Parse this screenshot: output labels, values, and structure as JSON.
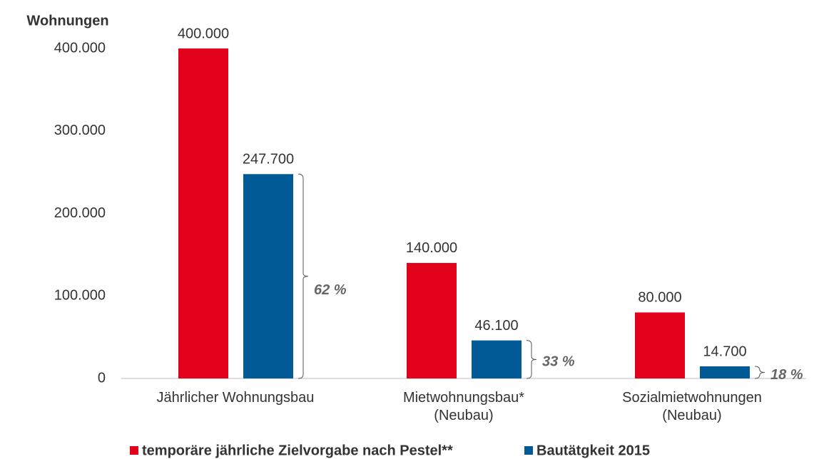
{
  "chart_data": {
    "type": "bar",
    "y_axis_label": "Wohnungen",
    "categories": [
      "Jährlicher Wohnungsbau",
      "Mietwohnungsbau*\n(Neubau)",
      "Sozialmietwohnungen\n(Neubau)"
    ],
    "series": [
      {
        "name": "temporäre jährliche Zielvorgabe nach Pestel**",
        "color": "#e2001a",
        "values": [
          400000,
          140000,
          80000
        ],
        "value_labels": [
          "400.000",
          "140.000",
          "80.000"
        ]
      },
      {
        "name": "Bautätgkeit 2015",
        "color": "#005a96",
        "values": [
          247700,
          46100,
          14700
        ],
        "value_labels": [
          "247.700",
          "46.100",
          "14.700"
        ]
      }
    ],
    "annotations": [
      "62 %",
      "33 %",
      "18 %"
    ],
    "ylim": [
      0,
      400000
    ],
    "yticks": [
      0,
      {
        "value": 100000,
        "label": "100.000"
      },
      {
        "value": 200000,
        "label": "200.000"
      },
      {
        "value": 300000,
        "label": "300.000"
      },
      {
        "value": 400000,
        "label": "400.000"
      }
    ],
    "legend": "bottom"
  }
}
